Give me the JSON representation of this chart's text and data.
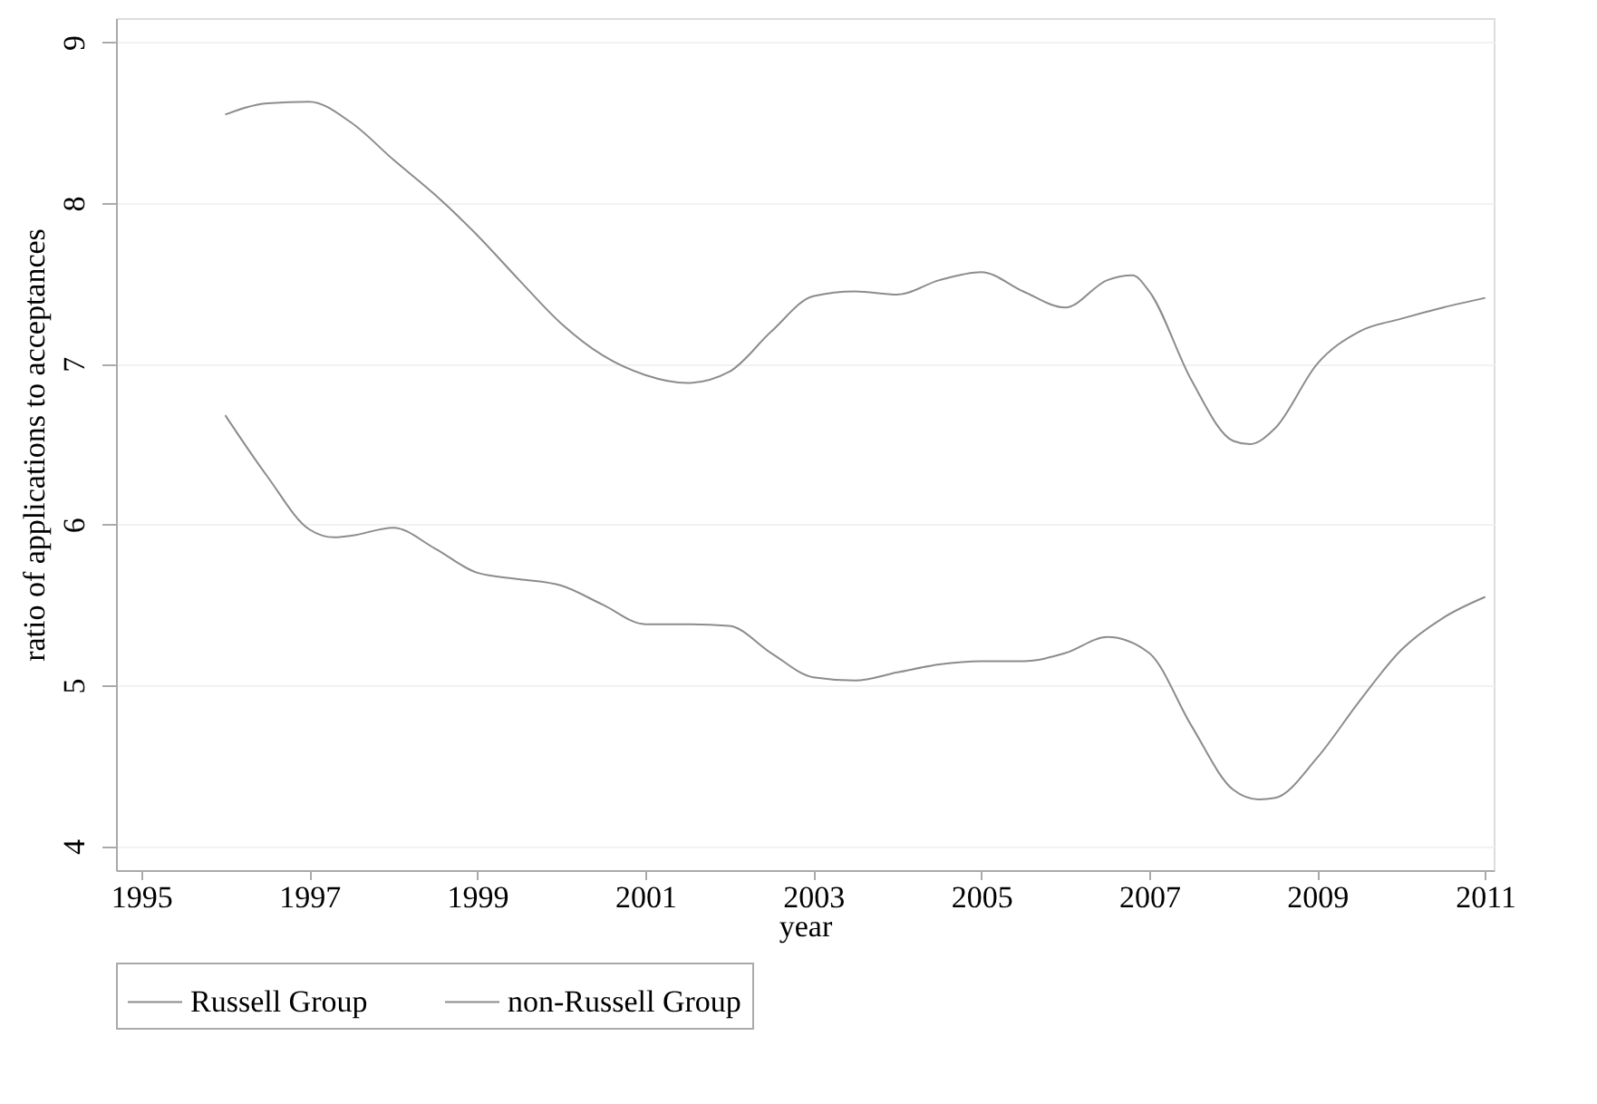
{
  "chart_data": {
    "type": "line",
    "xlabel": "year",
    "ylabel": "ratio of applications to acceptances",
    "x": [
      1996,
      1996.5,
      1997,
      1997.5,
      1998,
      1998.5,
      1999,
      1999.5,
      2000,
      2000.5,
      2001,
      2001.5,
      2002,
      2002.5,
      2003,
      2003.5,
      2004,
      2004.5,
      2005,
      2005.5,
      2006,
      2006.5,
      2006.8,
      2007,
      2007.5,
      2008,
      2008.2,
      2008.5,
      2009,
      2009.5,
      2010,
      2010.5,
      2011
    ],
    "series": [
      {
        "name": "Russell Group",
        "color": "#8c8c8c",
        "values": [
          8.55,
          8.62,
          8.63,
          8.5,
          8.27,
          8.05,
          7.8,
          7.52,
          7.25,
          7.05,
          6.93,
          6.88,
          6.95,
          7.2,
          7.42,
          7.45,
          7.43,
          7.52,
          7.57,
          7.45,
          7.35,
          7.52,
          7.55,
          7.45,
          6.9,
          6.52,
          6.5,
          6.6,
          7.0,
          7.2,
          7.28,
          7.35,
          7.41
        ]
      },
      {
        "name": "non-Russell Group",
        "color": "#8c8c8c",
        "x": [
          1996,
          1996.5,
          1997,
          1997.3,
          1997.5,
          1998,
          1998.5,
          1999,
          1999.5,
          2000,
          2000.5,
          2001,
          2001.5,
          2002,
          2002.5,
          2003,
          2003.5,
          2004,
          2004.5,
          2005,
          2005.5,
          2006,
          2006.5,
          2007,
          2007.5,
          2008,
          2008.3,
          2008.5,
          2009,
          2009.5,
          2010,
          2010.5,
          2011
        ],
        "values": [
          6.68,
          6.3,
          5.97,
          5.92,
          5.93,
          5.98,
          5.85,
          5.7,
          5.66,
          5.62,
          5.5,
          5.38,
          5.38,
          5.37,
          5.2,
          5.05,
          5.03,
          5.08,
          5.13,
          5.15,
          5.15,
          5.2,
          5.3,
          5.2,
          4.75,
          4.35,
          4.29,
          4.3,
          4.55,
          4.9,
          5.22,
          5.42,
          5.55
        ]
      }
    ],
    "xlim": [
      1994.7,
      2011.1
    ],
    "xticks": [
      1995,
      1997,
      1999,
      2001,
      2003,
      2005,
      2007,
      2009,
      2011
    ],
    "ylim": [
      3.85,
      9.15
    ],
    "yticks": [
      4,
      5,
      6,
      7,
      8,
      9
    ],
    "grid": "y",
    "legend": "bottom",
    "line_style": "solid"
  }
}
